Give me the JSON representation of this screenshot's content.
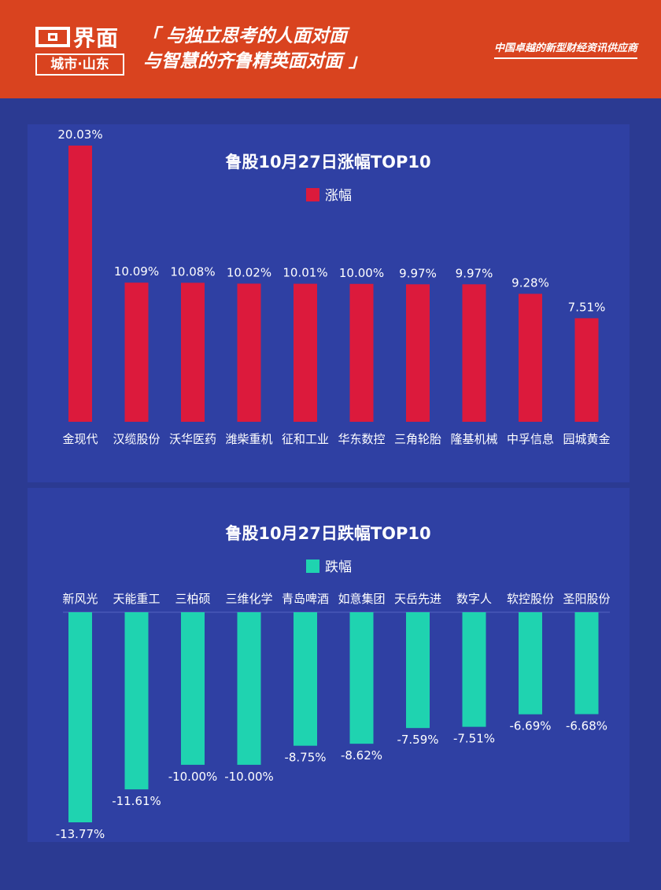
{
  "header": {
    "logo_name": "界面",
    "logo_sub": "城市·山东",
    "slogan_line1": "「 与独立思考的人面对面",
    "slogan_line2": "与智慧的齐鲁精英面对面 」",
    "tagline": "中国卓越的新型财经资讯供应商"
  },
  "colors": {
    "header_bg": "#d9431f",
    "page_bg": "#2b3a92",
    "panel_bg": "#2f40a3",
    "rise_bar": "#dc1a3c",
    "fall_bar": "#1fd3b0"
  },
  "chart_data": [
    {
      "type": "bar",
      "title": "鲁股10月27日涨幅TOP10",
      "legend": "涨幅",
      "categories": [
        "金现代",
        "汉缆股份",
        "沃华医药",
        "潍柴重机",
        "征和工业",
        "华东数控",
        "三角轮胎",
        "隆基机械",
        "中孚信息",
        "园城黄金"
      ],
      "values": [
        20.03,
        10.09,
        10.08,
        10.02,
        10.01,
        10.0,
        9.97,
        9.97,
        9.28,
        7.51
      ],
      "labels": [
        "20.03%",
        "10.09%",
        "10.08%",
        "10.02%",
        "10.01%",
        "10.00%",
        "9.97%",
        "9.97%",
        "9.28%",
        "7.51%"
      ],
      "ylim": [
        0,
        20.03
      ],
      "legend_position": "top"
    },
    {
      "type": "bar",
      "title": "鲁股10月27日跌幅TOP10",
      "legend": "跌幅",
      "categories": [
        "新风光",
        "天能重工",
        "三柏硕",
        "三维化学",
        "青岛啤酒",
        "如意集团",
        "天岳先进",
        "数字人",
        "软控股份",
        "圣阳股份"
      ],
      "values": [
        -13.77,
        -11.61,
        -10.0,
        -10.0,
        -8.75,
        -8.62,
        -7.59,
        -7.51,
        -6.69,
        -6.68
      ],
      "labels": [
        "-13.77%",
        "-11.61%",
        "-10.00%",
        "-10.00%",
        "-8.75%",
        "-8.62%",
        "-7.59%",
        "-7.51%",
        "-6.69%",
        "-6.68%"
      ],
      "ylim": [
        -13.77,
        0
      ],
      "legend_position": "top"
    }
  ]
}
